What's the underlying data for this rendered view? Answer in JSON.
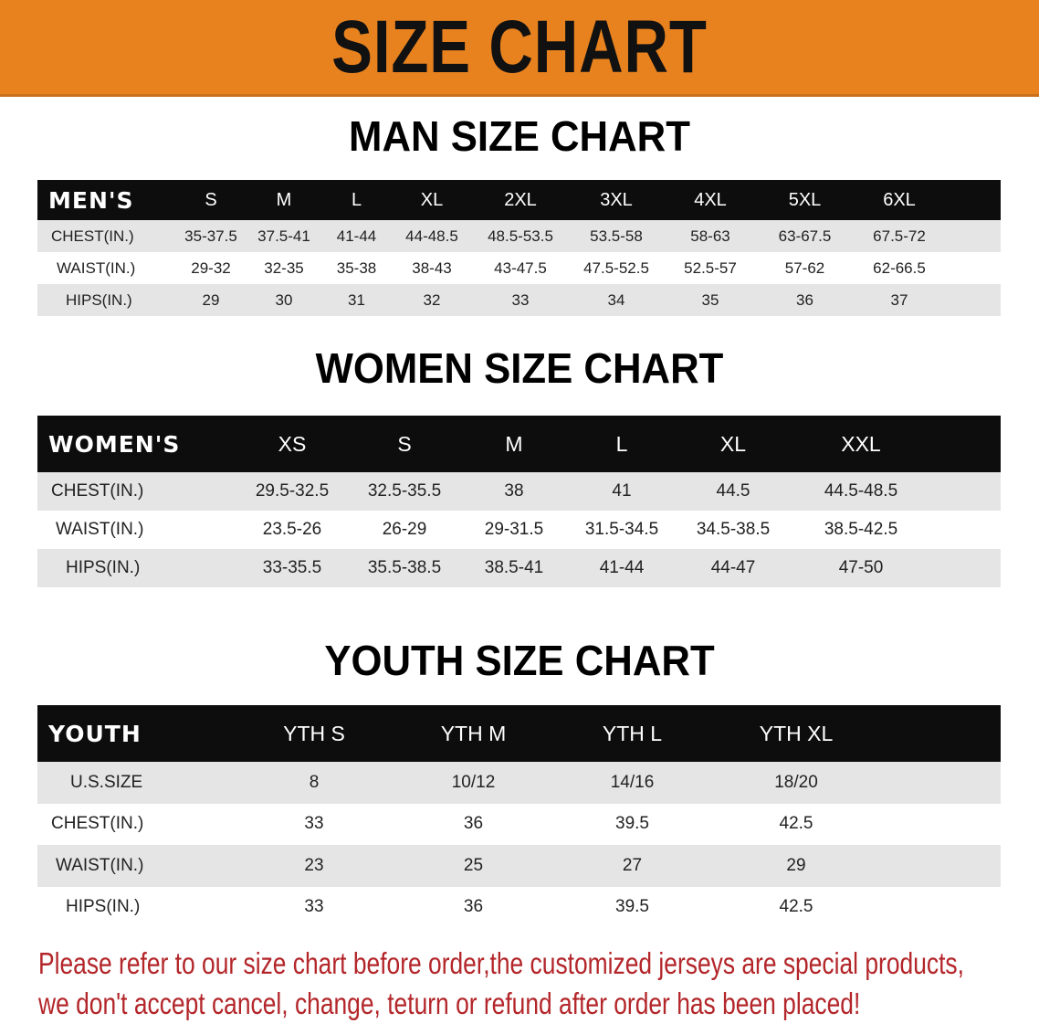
{
  "banner_title": "SIZE CHART",
  "colors": {
    "banner": "#e8821f",
    "header_row": "#0d0d0d",
    "stripe": "#e5e5e5",
    "note": "#b3262a"
  },
  "men": {
    "title": "MAN SIZE CHART",
    "header": [
      "MEN'S",
      "S",
      "M",
      "L",
      "XL",
      "2XL",
      "3XL",
      "4XL",
      "5XL",
      "6XL"
    ],
    "rows": [
      [
        "CHEST(IN.)",
        "35-37.5",
        "37.5-41",
        "41-44",
        "44-48.5",
        "48.5-53.5",
        "53.5-58",
        "58-63",
        "63-67.5",
        "67.5-72"
      ],
      [
        "WAIST(IN.)",
        "29-32",
        "32-35",
        "35-38",
        "38-43",
        "43-47.5",
        "47.5-52.5",
        "52.5-57",
        "57-62",
        "62-66.5"
      ],
      [
        "HIPS(IN.)",
        "29",
        "30",
        "31",
        "32",
        "33",
        "34",
        "35",
        "36",
        "37"
      ]
    ]
  },
  "women": {
    "title": "WOMEN SIZE CHART",
    "header": [
      "WOMEN'S",
      "XS",
      "S",
      "M",
      "L",
      "XL",
      "XXL"
    ],
    "rows": [
      [
        "CHEST(IN.)",
        "29.5-32.5",
        "32.5-35.5",
        "38",
        "41",
        "44.5",
        "44.5-48.5"
      ],
      [
        "WAIST(IN.)",
        "23.5-26",
        "26-29",
        "29-31.5",
        "31.5-34.5",
        "34.5-38.5",
        "38.5-42.5"
      ],
      [
        "HIPS(IN.)",
        "33-35.5",
        "35.5-38.5",
        "38.5-41",
        "41-44",
        "44-47",
        "47-50"
      ]
    ]
  },
  "youth": {
    "title": "YOUTH SIZE CHART",
    "header": [
      "YOUTH",
      "YTH S",
      "YTH M",
      "YTH L",
      "YTH XL"
    ],
    "rows": [
      [
        "U.S.SIZE",
        "8",
        "10/12",
        "14/16",
        "18/20"
      ],
      [
        "CHEST(IN.)",
        "33",
        "36",
        "39.5",
        "42.5"
      ],
      [
        "WAIST(IN.)",
        "23",
        "25",
        "27",
        "29"
      ],
      [
        "HIPS(IN.)",
        "33",
        "36",
        "39.5",
        "42.5"
      ]
    ]
  },
  "note": {
    "line1": "Please refer to our size chart before order,the customized jerseys are special products,",
    "line2": "we don't accept cancel, change, teturn or refund after order has been placed!"
  }
}
